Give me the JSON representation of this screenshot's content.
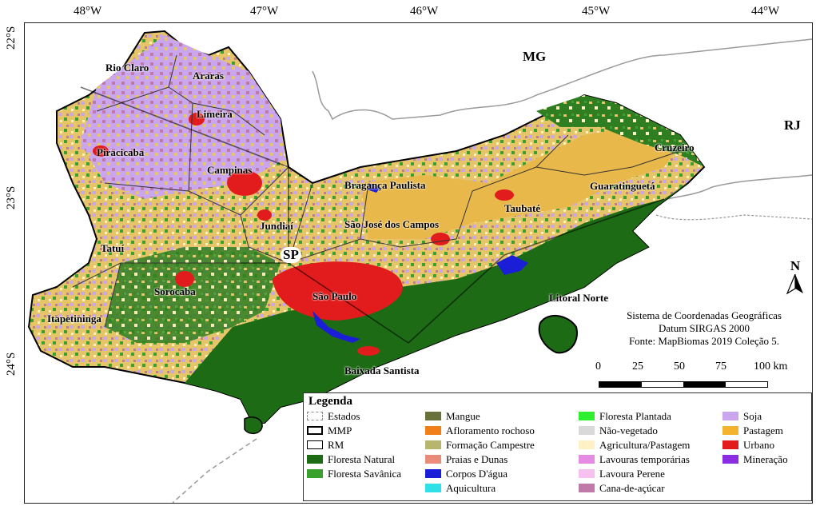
{
  "map": {
    "ticks_lon": [
      "48°W",
      "47°W",
      "46°W",
      "45°W",
      "44°W"
    ],
    "ticks_lat": [
      "22°S",
      "23°S",
      "24°S"
    ],
    "states": [
      "MG",
      "RJ"
    ],
    "sp_label": "SP",
    "north_label": "N",
    "regions": [
      "Rio Claro",
      "Araras",
      "Limeira",
      "Piracicaba",
      "Campinas",
      "Bragança Paulista",
      "Jundiaí",
      "São José dos Campos",
      "Taubaté",
      "Guaratinguetá",
      "Cruzeiro",
      "Tatuí",
      "Sorocaba",
      "São Paulo",
      "Itapetininga",
      "Litoral Norte",
      "Baixada Santista"
    ],
    "info_lines": [
      "Sistema de Coordenadas Geográficas",
      "Datum SIRGAS 2000",
      "Fonte: MapBiomas 2019 Coleção 5."
    ],
    "scale_labels": [
      "0",
      "25",
      "50",
      "75",
      "100 km"
    ]
  },
  "legend": {
    "title": "Legenda",
    "items": [
      {
        "label": "Estados",
        "color": "#888888",
        "kind": "dashed"
      },
      {
        "label": "MMP",
        "color": "#000000",
        "kind": "outline-bold"
      },
      {
        "label": "RM",
        "color": "#000000",
        "kind": "outline"
      },
      {
        "label": "Floresta Natural",
        "color": "#1e6b16",
        "kind": "fill"
      },
      {
        "label": "Floresta Savânica",
        "color": "#3aa12f",
        "kind": "fill"
      },
      {
        "label": "Mangue",
        "color": "#68713a",
        "kind": "fill"
      },
      {
        "label": "Afloramento rochoso",
        "color": "#f07f1a",
        "kind": "fill"
      },
      {
        "label": "Formação Campestre",
        "color": "#b7b56e",
        "kind": "fill"
      },
      {
        "label": "Praias e Dunas",
        "color": "#e98b78",
        "kind": "fill"
      },
      {
        "label": "Corpos D'água",
        "color": "#1a1ed6",
        "kind": "fill"
      },
      {
        "label": "Aquicultura",
        "color": "#2fe0e6",
        "kind": "fill"
      },
      {
        "label": "Floresta Plantada",
        "color": "#2ff02f",
        "kind": "fill"
      },
      {
        "label": "Não-vegetado",
        "color": "#d9d9d9",
        "kind": "fill"
      },
      {
        "label": "Agricultura/Pastagem",
        "color": "#fff1c6",
        "kind": "fill"
      },
      {
        "label": "Lavouras temporárias",
        "color": "#e58be3",
        "kind": "fill"
      },
      {
        "label": "Lavoura Perene",
        "color": "#f7c1ef",
        "kind": "fill"
      },
      {
        "label": "Cana-de-açúcar",
        "color": "#c07aa7",
        "kind": "fill"
      },
      {
        "label": "Soja",
        "color": "#c9a6ee",
        "kind": "fill"
      },
      {
        "label": "Pastagem",
        "color": "#f4b32f",
        "kind": "fill"
      },
      {
        "label": "Urbano",
        "color": "#e21c1c",
        "kind": "fill"
      },
      {
        "label": "Mineração",
        "color": "#8b2be2",
        "kind": "fill"
      }
    ]
  }
}
